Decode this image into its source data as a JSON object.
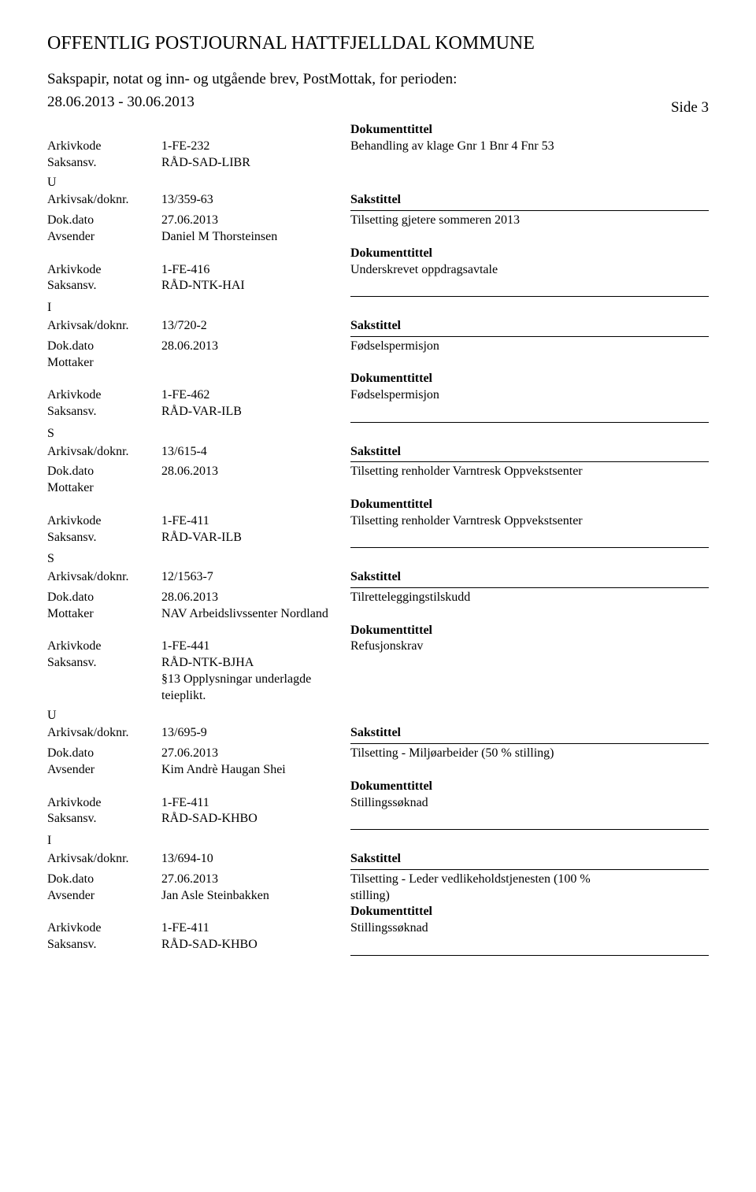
{
  "header": {
    "main_title": "OFFENTLIG POSTJOURNAL HATTFJELLDAL KOMMUNE",
    "subtitle_line1": "Sakspapir, notat og inn- og utgående brev, PostMottak, for perioden:",
    "subtitle_line2": "28.06.2013 - 30.06.2013",
    "page_label": "Side 3"
  },
  "labels": {
    "arkivkode": "Arkivkode",
    "saksansv": "Saksansv.",
    "arkivsak": "Arkivsak/doknr.",
    "dokdato": "Dok.dato",
    "avsender": "Avsender",
    "mottaker": "Mottaker",
    "dokumenttittel": "Dokumenttittel",
    "sakstittel": "Sakstittel"
  },
  "entries": [
    {
      "top_rows": [
        {
          "c1": "",
          "c2": "",
          "c3_bold": "Dokumenttittel"
        },
        {
          "c1": "Arkivkode",
          "c2": "1-FE-232",
          "c3": "Behandling av klage Gnr 1 Bnr 4 Fnr 53"
        },
        {
          "c1": "Saksansv.",
          "c2": "RÅD-SAD-LIBR",
          "c3": ""
        }
      ],
      "type_marker": "U",
      "main_rows": [
        {
          "c1": "Arkivsak/doknr.",
          "c2": "13/359-63",
          "c3_bold": "Sakstittel"
        },
        {
          "c1": "Dok.dato",
          "c2": "27.06.2013",
          "c3": "Tilsetting gjetere sommeren 2013"
        },
        {
          "c1": "Avsender",
          "c2": "Daniel M Thorsteinsen",
          "c3": ""
        },
        {
          "c1": "",
          "c2": "",
          "c3_bold": "Dokumenttittel"
        },
        {
          "c1": "Arkivkode",
          "c2": "1-FE-416",
          "c3": "Underskrevet oppdragsavtale"
        },
        {
          "c1": "Saksansv.",
          "c2": "RÅD-NTK-HAI",
          "c3": ""
        }
      ]
    },
    {
      "type_marker": "I",
      "main_rows": [
        {
          "c1": "Arkivsak/doknr.",
          "c2": "13/720-2",
          "c3_bold": "Sakstittel"
        },
        {
          "c1": "Dok.dato",
          "c2": "28.06.2013",
          "c3": "Fødselspermisjon"
        },
        {
          "c1": "Mottaker",
          "c2": "",
          "c3": ""
        },
        {
          "c1": "",
          "c2": "",
          "c3_bold": "Dokumenttittel"
        },
        {
          "c1": "Arkivkode",
          "c2": "1-FE-462",
          "c3": "Fødselspermisjon"
        },
        {
          "c1": "Saksansv.",
          "c2": "RÅD-VAR-ILB",
          "c3": ""
        }
      ]
    },
    {
      "type_marker": "S",
      "main_rows": [
        {
          "c1": "Arkivsak/doknr.",
          "c2": "13/615-4",
          "c3_bold": "Sakstittel"
        },
        {
          "c1": "Dok.dato",
          "c2": "28.06.2013",
          "c3": "Tilsetting renholder Varntresk Oppvekstsenter"
        },
        {
          "c1": "Mottaker",
          "c2": "",
          "c3": ""
        },
        {
          "c1": "",
          "c2": "",
          "c3_bold": "Dokumenttittel"
        },
        {
          "c1": "Arkivkode",
          "c2": "1-FE-411",
          "c3": "Tilsetting renholder Varntresk Oppvekstsenter"
        },
        {
          "c1": "Saksansv.",
          "c2": "RÅD-VAR-ILB",
          "c3": ""
        }
      ]
    },
    {
      "type_marker": "S",
      "main_rows": [
        {
          "c1": "Arkivsak/doknr.",
          "c2": "12/1563-7",
          "c3_bold": "Sakstittel"
        },
        {
          "c1": "Dok.dato",
          "c2": "28.06.2013",
          "c3": "Tilretteleggingstilskudd"
        },
        {
          "c1": "Mottaker",
          "c2": "NAV Arbeidslivssenter Nordland",
          "c3": ""
        },
        {
          "c1": "",
          "c2": "",
          "c3_bold": "Dokumenttittel"
        },
        {
          "c1": "Arkivkode",
          "c2": "1-FE-441",
          "c3": "Refusjonskrav"
        },
        {
          "c1": "Saksansv.",
          "c2": "RÅD-NTK-BJHA",
          "c3": ""
        }
      ],
      "notes": [
        "§13 Opplysningar underlagde",
        "teieplikt."
      ],
      "continued_marker": "U",
      "continued_rows": [
        {
          "c1": "Arkivsak/doknr.",
          "c2": "13/695-9",
          "c3_bold": "Sakstittel"
        },
        {
          "c1": "Dok.dato",
          "c2": "27.06.2013",
          "c3": "Tilsetting - Miljøarbeider (50 % stilling)"
        },
        {
          "c1": "Avsender",
          "c2": "Kim Andrè Haugan Shei",
          "c3": ""
        },
        {
          "c1": "",
          "c2": "",
          "c3_bold": "Dokumenttittel"
        },
        {
          "c1": "Arkivkode",
          "c2": "1-FE-411",
          "c3": "Stillingssøknad"
        },
        {
          "c1": "Saksansv.",
          "c2": "RÅD-SAD-KHBO",
          "c3": ""
        }
      ]
    },
    {
      "type_marker": "I",
      "main_rows": [
        {
          "c1": "Arkivsak/doknr.",
          "c2": "13/694-10",
          "c3_bold": "Sakstittel"
        },
        {
          "c1": "Dok.dato",
          "c2": "27.06.2013",
          "c3": "Tilsetting - Leder vedlikeholdstjenesten (100 %"
        },
        {
          "c1": "Avsender",
          "c2": "Jan Asle Steinbakken",
          "c3": "stilling)"
        },
        {
          "c1": "",
          "c2": "",
          "c3_bold": "Dokumenttittel"
        },
        {
          "c1": "Arkivkode",
          "c2": "1-FE-411",
          "c3": "Stillingssøknad"
        },
        {
          "c1": "Saksansv.",
          "c2": "RÅD-SAD-KHBO",
          "c3": ""
        }
      ]
    }
  ]
}
